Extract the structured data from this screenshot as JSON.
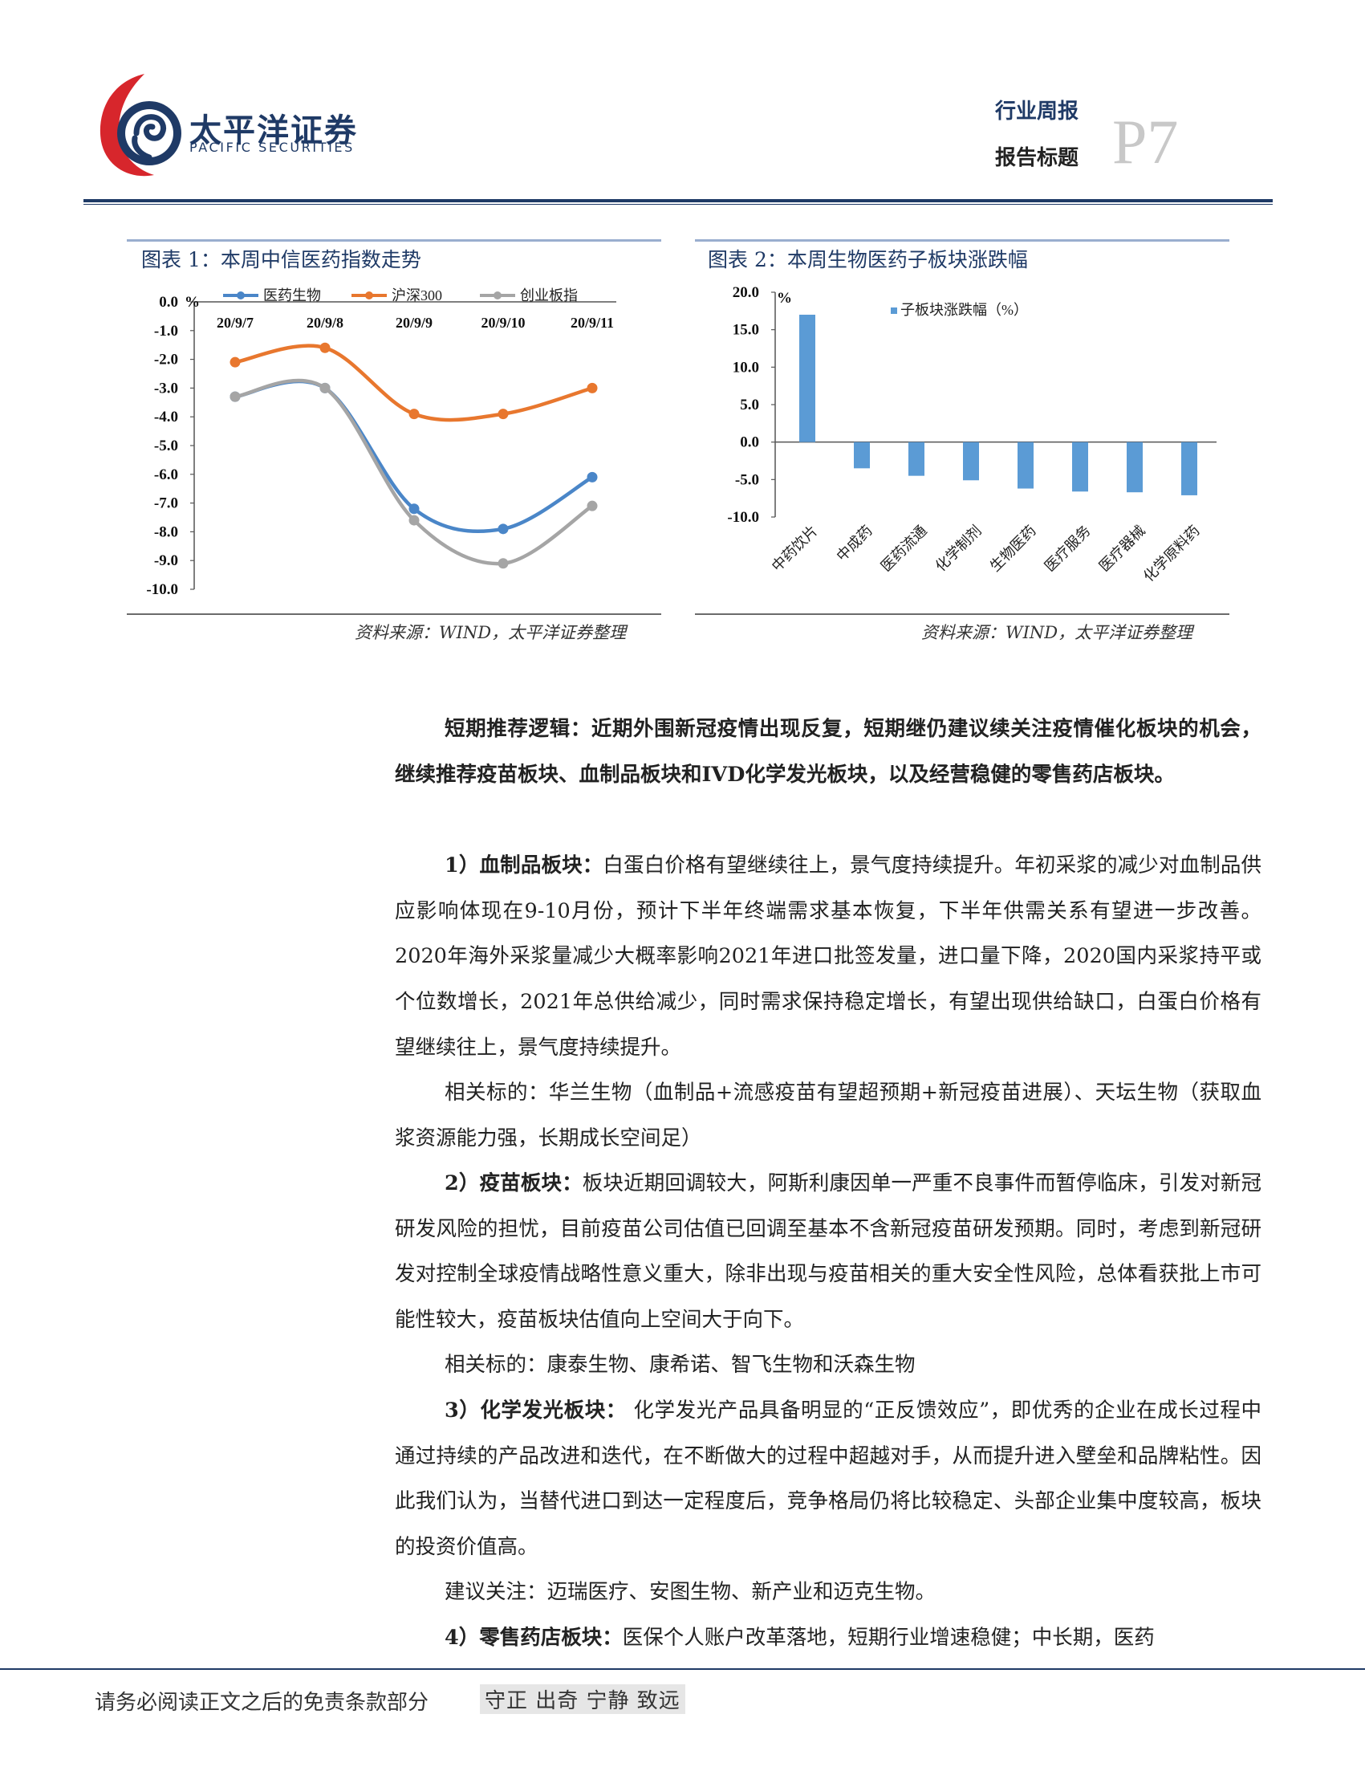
{
  "header": {
    "logo_cn": "太平洋证券",
    "logo_en": "PACIFIC SECURITIES",
    "report_type": "行业周报",
    "report_title": "报告标题",
    "page_number": "P7",
    "brand_colors": {
      "navy": "#1f3a66",
      "red": "#d7262c"
    }
  },
  "figure1": {
    "caption": "图表 1：本周中信医药指数走势",
    "source": "资料来源：WIND，太平洋证券整理",
    "chart_data": {
      "type": "line",
      "x": [
        "20/9/7",
        "20/9/8",
        "20/9/9",
        "20/9/10",
        "20/9/11"
      ],
      "series": [
        {
          "name": "医药生物",
          "color": "#4a86c8",
          "values": [
            -3.3,
            -3.0,
            -7.2,
            -7.9,
            -6.1
          ]
        },
        {
          "name": "沪深300",
          "color": "#e8772e",
          "values": [
            -2.1,
            -1.6,
            -3.9,
            -3.9,
            -3.0
          ]
        },
        {
          "name": "创业板指",
          "color": "#a5a5a5",
          "values": [
            -3.3,
            -3.0,
            -7.6,
            -9.1,
            -7.1
          ]
        }
      ],
      "yunit": "%",
      "yticks": [
        "0.0",
        "-1.0",
        "-2.0",
        "-3.0",
        "-4.0",
        "-5.0",
        "-6.0",
        "-7.0",
        "-8.0",
        "-9.0",
        "-10.0"
      ],
      "ylim": [
        -10,
        0
      ],
      "legend": "top",
      "smooth": true,
      "grid": false
    }
  },
  "figure2": {
    "caption": "图表 2：本周生物医药子板块涨跌幅",
    "source": "资料来源：WIND，太平洋证券整理",
    "chart_data": {
      "type": "bar",
      "categories": [
        "中药饮片",
        "中成药",
        "医药流通",
        "化学制剂",
        "生物医药",
        "医疗服务",
        "医疗器械",
        "化学原料药"
      ],
      "series": [
        {
          "name": "子板块涨跌幅（%）",
          "color": "#5b9bd5",
          "values": [
            17.0,
            -3.5,
            -4.5,
            -5.1,
            -6.2,
            -6.6,
            -6.7,
            -7.1
          ]
        }
      ],
      "yunit": "%",
      "yticks": [
        "20.0",
        "15.0",
        "10.0",
        "5.0",
        "0.0",
        "-5.0",
        "-10.0"
      ],
      "ylim": [
        -10,
        20
      ],
      "legend": "top",
      "grid": false
    }
  },
  "body": {
    "p1_bold": "短期推荐逻辑：近期外围新冠疫情出现反复，短期继仍建议续关注疫情催化板块的机会，继续推荐疫苗板块、血制品板块和IVD化学发光板块，以及经营稳健的零售药店板块。",
    "p2_bold": "1）血制品板块：",
    "p2_text": "白蛋白价格有望继续往上，景气度持续提升。年初采浆的减少对血制品供应影响体现在9-10月份，预计下半年终端需求基本恢复，下半年供需关系有望进一步改善。2020年海外采浆量减少大概率影响2021年进口批签发量，进口量下降，2020国内采浆持平或个位数增长，2021年总供给减少，同时需求保持稳定增长，有望出现供给缺口，白蛋白价格有望继续往上，景气度持续提升。",
    "p3_text": "相关标的：华兰生物（血制品+流感疫苗有望超预期+新冠疫苗进展）、天坛生物（获取血浆资源能力强，长期成长空间足）",
    "p4_bold": "2）疫苗板块：",
    "p4_text": "板块近期回调较大，阿斯利康因单一严重不良事件而暂停临床，引发对新冠研发风险的担忧，目前疫苗公司估值已回调至基本不含新冠疫苗研发预期。同时，考虑到新冠研发对控制全球疫情战略性意义重大，除非出现与疫苗相关的重大安全性风险，总体看获批上市可能性较大，疫苗板块估值向上空间大于向下。",
    "p5_text": "相关标的：康泰生物、康希诺、智飞生物和沃森生物",
    "p6_bold": "3）化学发光板块：",
    "p6_text": " 化学发光产品具备明显的“正反馈效应”，即优秀的企业在成长过程中通过持续的产品改进和迭代，在不断做大的过程中超越对手，从而提升进入壁垒和品牌粘性。因此我们认为，当替代进口到达一定程度后，竞争格局仍将比较稳定、头部企业集中度较高，板块的投资价值高。",
    "p7_text": "建议关注：迈瑞医疗、安图生物、新产业和迈克生物。",
    "p8_bold": "4）零售药店板块：",
    "p8_text": "医保个人账户改革落地，短期行业增速稳健；中长期，医药"
  },
  "footer": {
    "disclaimer": "请务必阅读正文之后的免责条款部分",
    "motto": "守正 出奇 宁静 致远"
  }
}
